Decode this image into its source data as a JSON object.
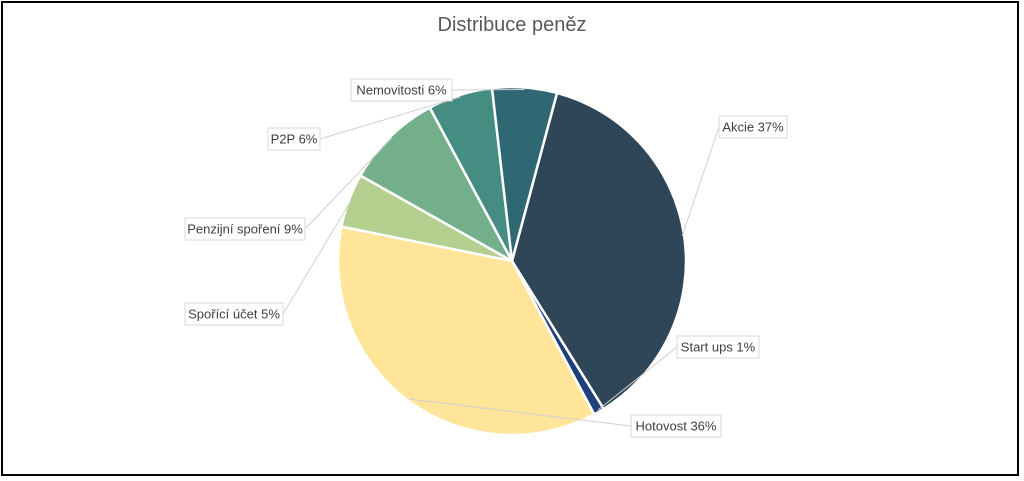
{
  "chart_data": {
    "type": "pie",
    "title": "Distribuce peněz",
    "categories": [
      "Akcie",
      "Start ups",
      "Hotovost",
      "Spořící účet",
      "Penzijní spoření",
      "P2P",
      "Nemovitosti"
    ],
    "values": [
      37,
      1,
      36,
      5,
      9,
      6,
      6
    ],
    "labels": [
      "Akcie 37%",
      "Start ups 1%",
      "Hotovost 36%",
      "Spořící účet 5%",
      "Penzijní spoření 9%",
      "P2P 6%",
      "Nemovitosti 6%"
    ],
    "colors": [
      "#2e4657",
      "#1f3f7a",
      "#ffe599",
      "#b5cf8f",
      "#72af8a",
      "#458c82",
      "#2f6873"
    ],
    "start_angle_deg": 15,
    "legend": "none"
  }
}
